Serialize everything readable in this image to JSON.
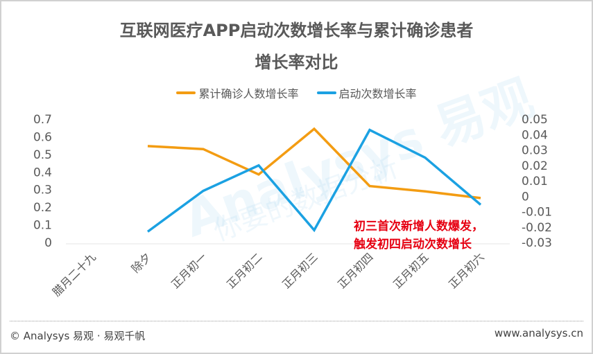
{
  "title": {
    "line1": "互联网医疗APP启动次数增长率与累计确诊患者",
    "line2": "增长率对比"
  },
  "legend": [
    {
      "label": "累计确诊人数增长率",
      "color": "#F39C12"
    },
    {
      "label": "启动次数增长率",
      "color": "#1BA1E2"
    }
  ],
  "annotation": {
    "line1": "初三首次新增人数爆发，",
    "line2": "触发初四启动次数增长",
    "color": "#E60012"
  },
  "watermark": {
    "brand": "Analysys 易观",
    "slogan": "你要的数据分析"
  },
  "footer": {
    "left": "© Analysys 易观 · 易观千帆",
    "right": "www.analysys.cn"
  },
  "chart_data": {
    "type": "line",
    "title": "互联网医疗APP启动次数增长率与累计确诊患者增长率对比",
    "categories": [
      "腊月二十九",
      "除夕",
      "正月初一",
      "正月初二",
      "正月初三",
      "正月初四",
      "正月初五",
      "正月初六"
    ],
    "series": [
      {
        "name": "累计确诊人数增长率",
        "axis": "left",
        "color": "#F39C12",
        "values": [
          null,
          0.547,
          0.53,
          0.386,
          0.645,
          0.32,
          0.29,
          0.252
        ]
      },
      {
        "name": "启动次数增长率",
        "axis": "right",
        "color": "#1BA1E2",
        "values": [
          null,
          -0.023,
          0.0035,
          0.02,
          -0.022,
          0.043,
          0.025,
          -0.0055
        ]
      }
    ],
    "y_left": {
      "ticks": [
        "0",
        "0.1",
        "0.2",
        "0.3",
        "0.4",
        "0.5",
        "0.6",
        "0.7"
      ],
      "ylim": [
        0,
        0.7
      ]
    },
    "y_right": {
      "ticks": [
        "-0.03",
        "-0.02",
        "-0.01",
        "0",
        "0.01",
        "0.02",
        "0.03",
        "0.04",
        "0.05"
      ],
      "ylim": [
        -0.03,
        0.05
      ]
    },
    "xlabel": "",
    "grid": false,
    "legend_position": "top"
  }
}
